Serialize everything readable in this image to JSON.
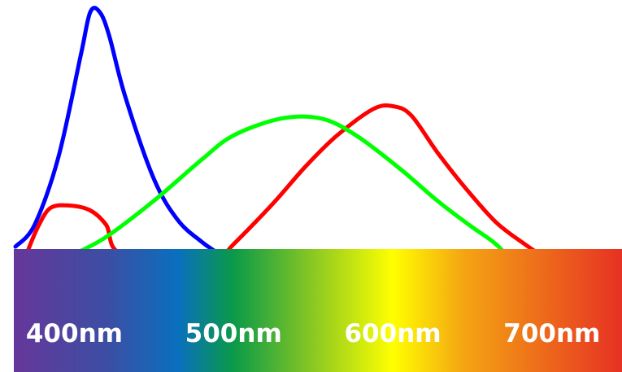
{
  "chart_data": {
    "type": "line",
    "title": "",
    "xlabel": "",
    "ylabel": "",
    "xlim": [
      362,
      744
    ],
    "ylim": [
      0,
      1
    ],
    "grid": false,
    "legend": "none",
    "x_ticks": [
      {
        "value": 400,
        "label": "400nm"
      },
      {
        "value": 500,
        "label": "500nm"
      },
      {
        "value": 600,
        "label": "600nm"
      },
      {
        "value": 700,
        "label": "700nm"
      }
    ],
    "spectrum_colors": [
      {
        "nm": 362,
        "color": "#66379a"
      },
      {
        "nm": 420,
        "color": "#3c4ea3"
      },
      {
        "nm": 465,
        "color": "#0a6fbf"
      },
      {
        "nm": 500,
        "color": "#0a9a48"
      },
      {
        "nm": 545,
        "color": "#7ec326"
      },
      {
        "nm": 600,
        "color": "#ffff00"
      },
      {
        "nm": 645,
        "color": "#f4a413"
      },
      {
        "nm": 744,
        "color": "#e63123"
      }
    ],
    "series": [
      {
        "color": "#0000ff",
        "points": [
          [
            363,
            0.01
          ],
          [
            375,
            0.1
          ],
          [
            390,
            0.38
          ],
          [
            404,
            0.8
          ],
          [
            410,
            0.98
          ],
          [
            416,
            0.98
          ],
          [
            422,
            0.88
          ],
          [
            432,
            0.63
          ],
          [
            450,
            0.29
          ],
          [
            465,
            0.12
          ],
          [
            480,
            0.03
          ],
          [
            491,
            0.0
          ]
        ]
      },
      {
        "color": "#ff0000",
        "points": [
          [
            370,
            0.0
          ],
          [
            377,
            0.09
          ],
          [
            385,
            0.17
          ],
          [
            397,
            0.18
          ],
          [
            410,
            0.16
          ],
          [
            420,
            0.1
          ],
          [
            430,
            0.0
          ],
          [
            478,
            0.0
          ],
          [
            493,
            0.0
          ],
          [
            500,
            0.02
          ],
          [
            525,
            0.19
          ],
          [
            545,
            0.34
          ],
          [
            565,
            0.47
          ],
          [
            588,
            0.58
          ],
          [
            601,
            0.59
          ],
          [
            612,
            0.55
          ],
          [
            628,
            0.4
          ],
          [
            646,
            0.25
          ],
          [
            665,
            0.11
          ],
          [
            683,
            0.02
          ],
          [
            692,
            0.0
          ]
        ]
      },
      {
        "color": "#00ff00",
        "points": [
          [
            400,
            0.0
          ],
          [
            420,
            0.05
          ],
          [
            450,
            0.2
          ],
          [
            480,
            0.37
          ],
          [
            500,
            0.47
          ],
          [
            530,
            0.54
          ],
          [
            555,
            0.54
          ],
          [
            577,
            0.47
          ],
          [
            605,
            0.33
          ],
          [
            628,
            0.2
          ],
          [
            648,
            0.1
          ],
          [
            663,
            0.03
          ],
          [
            671,
            0.0
          ]
        ]
      }
    ]
  }
}
